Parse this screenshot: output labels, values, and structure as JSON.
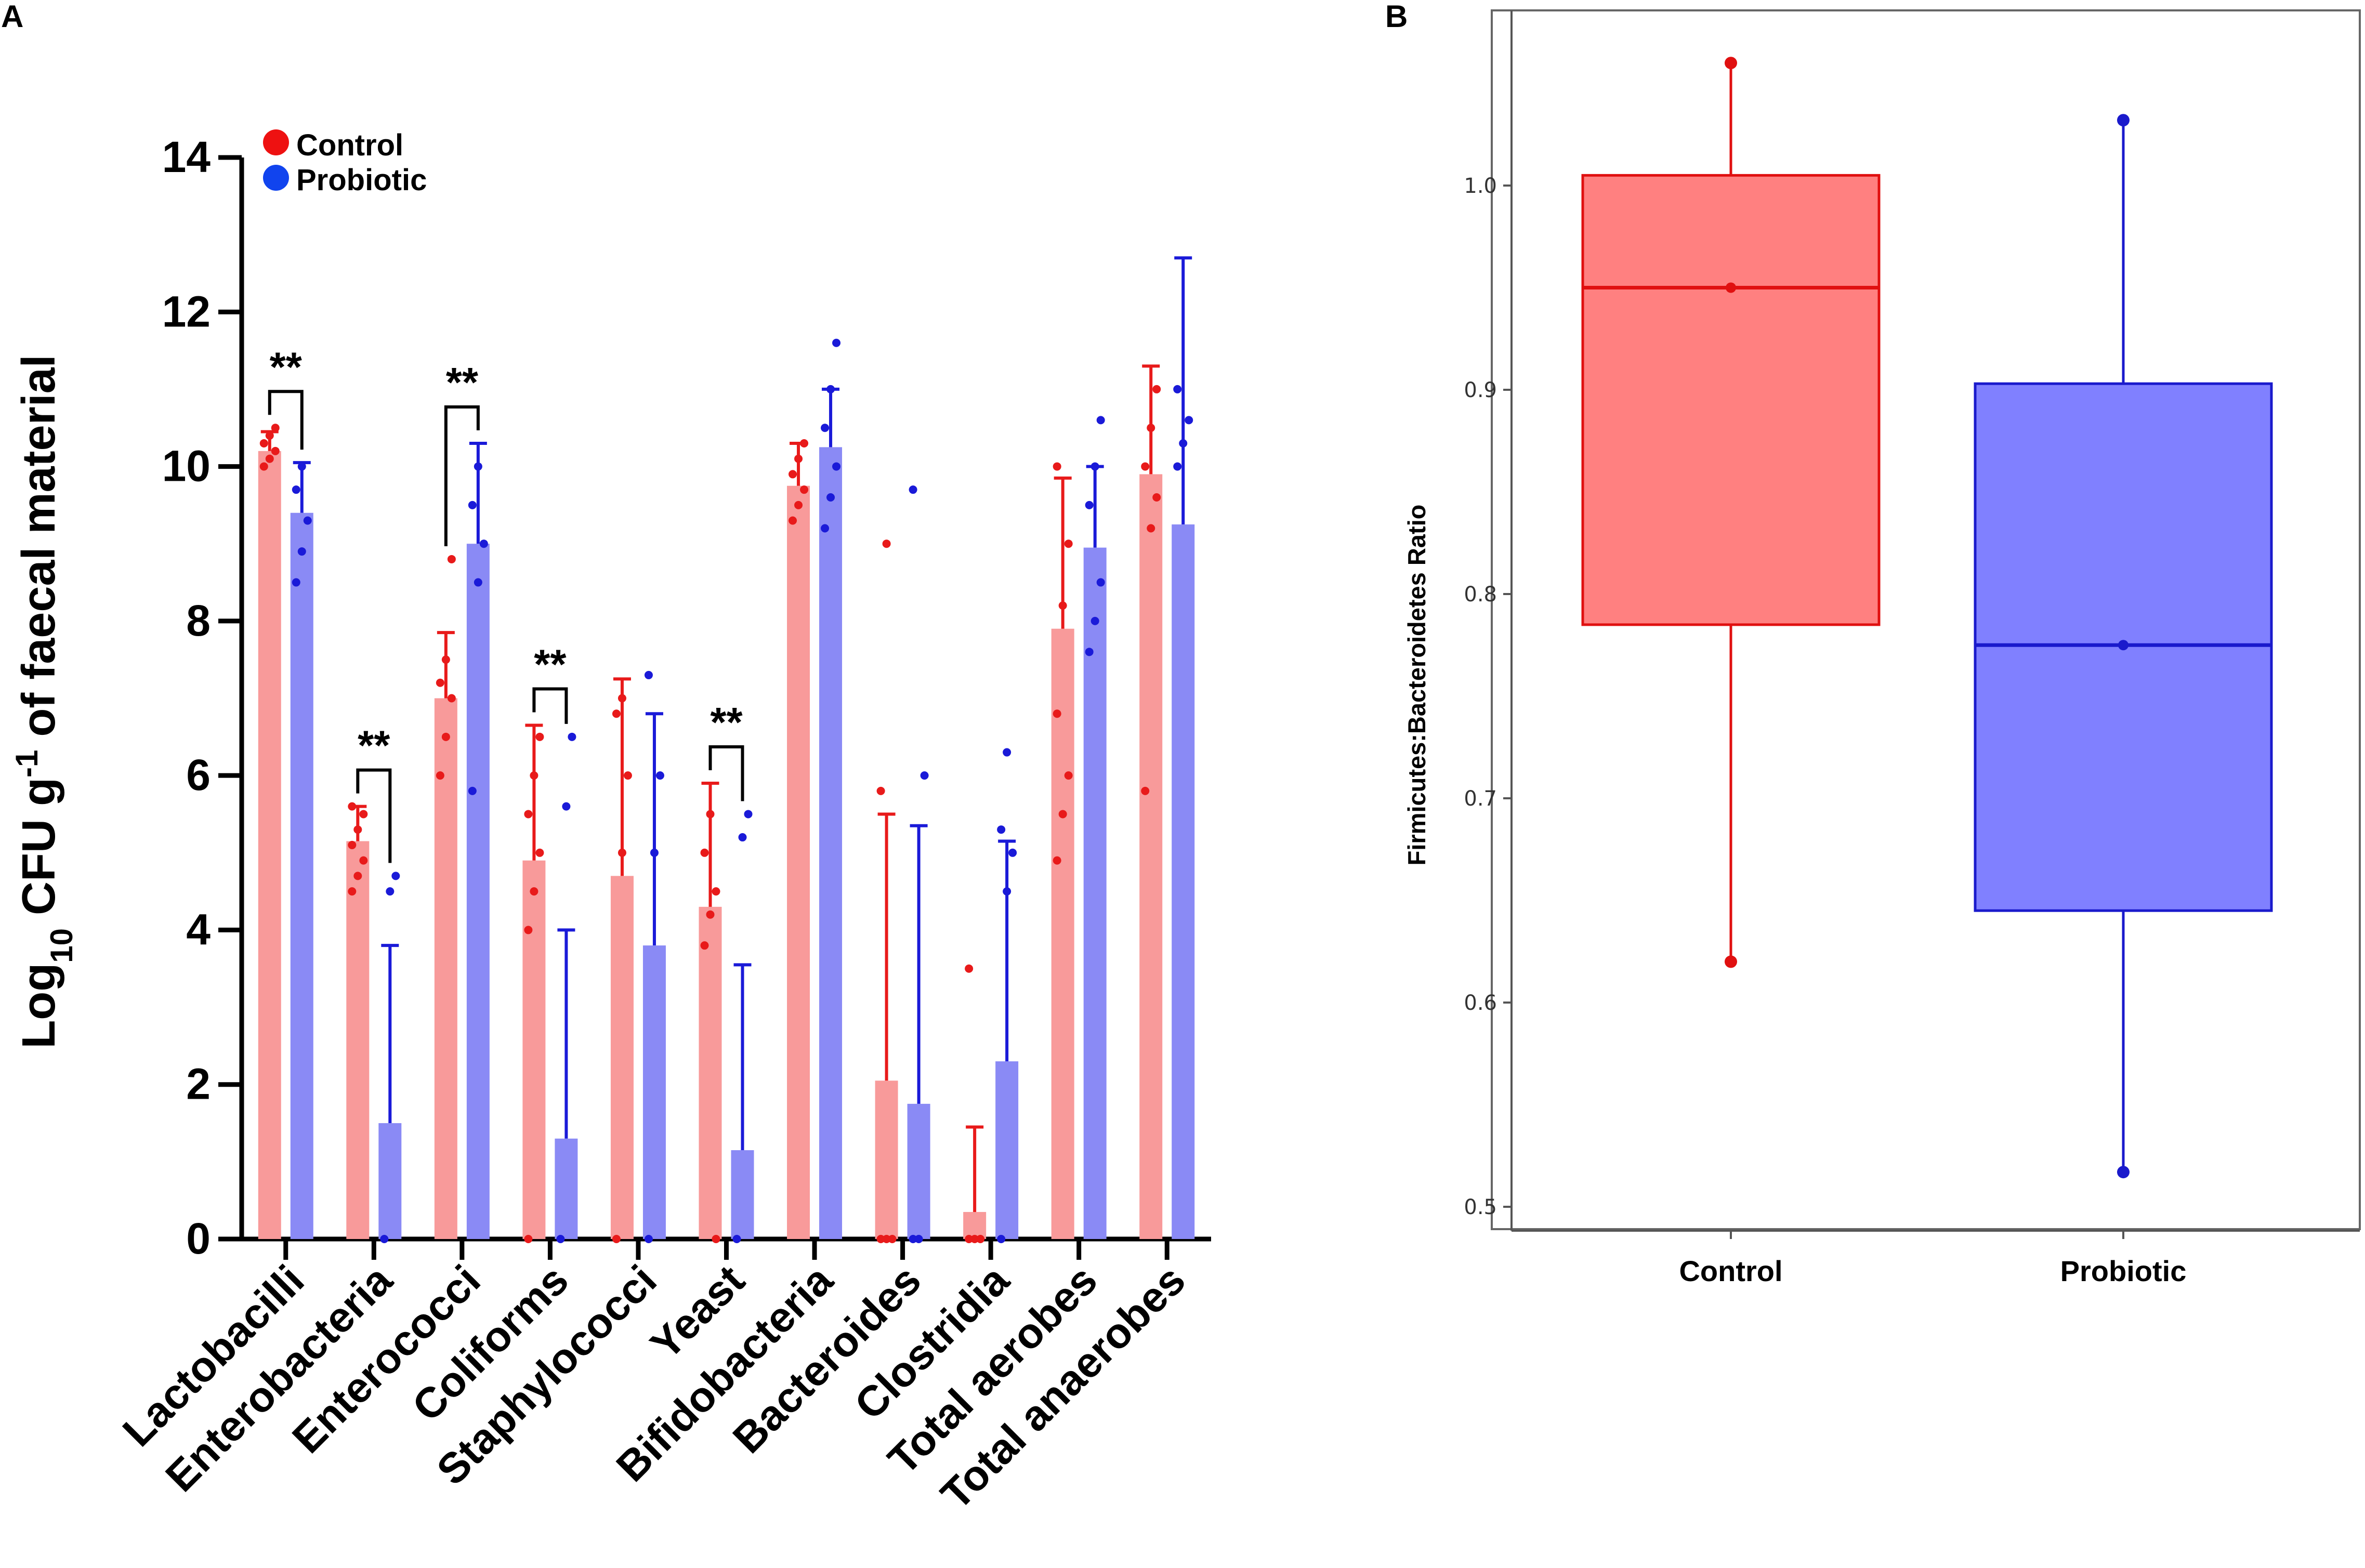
{
  "panels": {
    "a_label": "A",
    "b_label": "B"
  },
  "chart_data": [
    {
      "panel": "A",
      "type": "bar",
      "title": "",
      "ylabel": {
        "prefix": "Log",
        "sub": "10",
        "mid": " CFU g",
        "sup": "-1",
        "suffix": " of faecal material"
      },
      "ylim": [
        0,
        14
      ],
      "yticks": [
        "0",
        "2",
        "4",
        "6",
        "8",
        "10",
        "12",
        "14"
      ],
      "categories": [
        "Lactobacilli",
        "Enterobacteria",
        "Enterococci",
        "Coliforms",
        "Staphylococci",
        "Yeast",
        "Bifidobacteria",
        "Bacteroides",
        "Clostridia",
        "Total aerobes",
        "Total anaerobes"
      ],
      "legend": {
        "position": "top-left",
        "entries": [
          "Control",
          "Probiotic"
        ]
      },
      "significance_marker": "**",
      "significant_categories": [
        0,
        1,
        2,
        3,
        5
      ],
      "series": [
        {
          "name": "Control",
          "color": "#F89A9A",
          "dot_color": "#E81A1A",
          "values": [
            10.2,
            5.15,
            7.0,
            4.9,
            4.7,
            4.3,
            9.75,
            2.05,
            0.35,
            7.9,
            9.9
          ],
          "error_upper": [
            10.45,
            5.6,
            7.85,
            6.65,
            7.25,
            5.9,
            10.3,
            5.5,
            1.45,
            9.85,
            11.3
          ],
          "points": [
            [
              10.0,
              10.1,
              10.2,
              10.3,
              10.4,
              10.5
            ],
            [
              4.5,
              4.7,
              4.9,
              5.1,
              5.3,
              5.5,
              5.6
            ],
            [
              6.0,
              6.5,
              7.0,
              7.2,
              7.5,
              8.8
            ],
            [
              4.0,
              4.5,
              5.0,
              5.5,
              6.0,
              6.5,
              0
            ],
            [
              0,
              5.0,
              6.0,
              6.8,
              7.0
            ],
            [
              3.8,
              4.2,
              4.5,
              5.0,
              5.5,
              0
            ],
            [
              9.3,
              9.5,
              9.7,
              9.9,
              10.1,
              10.3
            ],
            [
              0,
              0,
              0,
              5.8,
              9.0
            ],
            [
              0,
              0,
              0,
              3.5
            ],
            [
              4.9,
              5.5,
              6.0,
              6.8,
              8.2,
              9.0,
              10.0
            ],
            [
              5.8,
              9.2,
              9.6,
              10.0,
              10.5,
              11.0
            ]
          ]
        },
        {
          "name": "Probiotic",
          "color": "#8A8AF5",
          "dot_color": "#1A1AD8",
          "values": [
            9.4,
            1.5,
            9.0,
            1.3,
            3.8,
            1.15,
            10.25,
            1.75,
            2.3,
            8.95,
            9.25
          ],
          "error_upper": [
            10.05,
            3.8,
            10.3,
            4.0,
            6.8,
            3.55,
            11.0,
            5.35,
            5.15,
            10.0,
            12.7
          ],
          "points": [
            [
              8.5,
              8.9,
              9.3,
              9.7,
              10.0
            ],
            [
              0,
              4.5,
              4.7
            ],
            [
              5.8,
              8.5,
              9.0,
              9.5,
              10.0
            ],
            [
              0,
              5.6,
              6.5
            ],
            [
              0,
              5.0,
              6.0,
              7.3
            ],
            [
              0,
              5.2,
              5.5
            ],
            [
              9.2,
              9.6,
              10.0,
              10.5,
              11.0,
              11.6
            ],
            [
              0,
              0,
              6.0,
              9.7
            ],
            [
              0,
              4.5,
              5.0,
              5.3,
              6.3
            ],
            [
              7.6,
              8.0,
              8.5,
              9.5,
              10.0,
              10.6
            ],
            [
              10.0,
              10.3,
              10.6,
              11.0
            ]
          ]
        }
      ]
    },
    {
      "panel": "B",
      "type": "box",
      "title": "",
      "ylabel": "Firmicutes:Bacteroidetes Ratio",
      "xlabel": "",
      "ylim": [
        0.48,
        1.085
      ],
      "yticks": [
        "0.5",
        "0.6",
        "0.7",
        "0.8",
        "0.9",
        "1.0"
      ],
      "categories": [
        "Control",
        "Probiotic"
      ],
      "series": [
        {
          "name": "Control",
          "fill": "#FF8080",
          "stroke": "#E01010",
          "min": 0.62,
          "q1": 0.785,
          "median": 0.95,
          "q3": 1.005,
          "max": 1.06
        },
        {
          "name": "Probiotic",
          "fill": "#8080FF",
          "stroke": "#1A1ACC",
          "min": 0.517,
          "q1": 0.645,
          "median": 0.775,
          "q3": 0.903,
          "max": 1.032
        }
      ]
    }
  ]
}
